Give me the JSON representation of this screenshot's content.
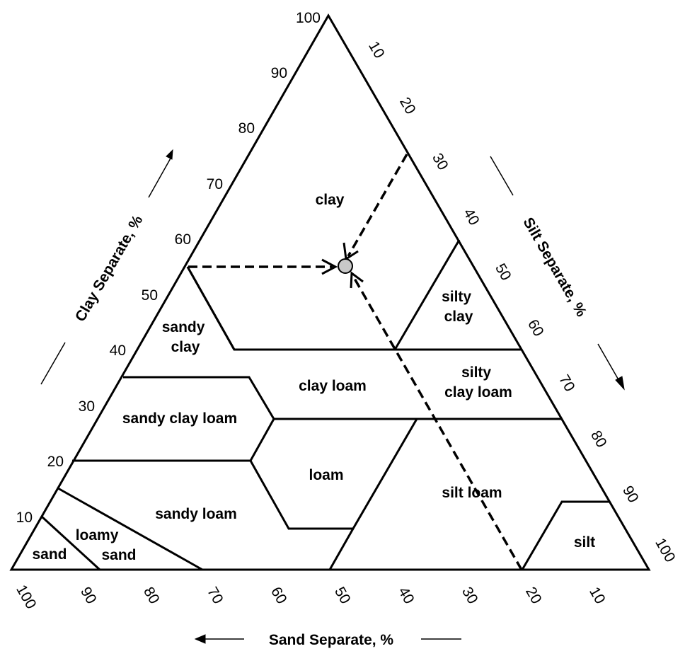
{
  "axes": {
    "clay": {
      "title": "Clay Separate, %",
      "ticks": [
        "10",
        "20",
        "30",
        "40",
        "50",
        "60",
        "70",
        "80",
        "90",
        "100"
      ]
    },
    "silt": {
      "title": "Silt Separate, %",
      "ticks": [
        "10",
        "20",
        "30",
        "40",
        "50",
        "60",
        "70",
        "80",
        "90",
        "100"
      ]
    },
    "sand": {
      "title": "Sand Separate, %",
      "ticks": [
        "100",
        "90",
        "80",
        "70",
        "60",
        "50",
        "40",
        "30",
        "20",
        "10"
      ]
    }
  },
  "textural_classes": [
    {
      "id": "clay",
      "lines": [
        "clay"
      ]
    },
    {
      "id": "silty-clay",
      "lines": [
        "silty",
        "clay"
      ]
    },
    {
      "id": "sandy-clay",
      "lines": [
        "sandy",
        "clay"
      ]
    },
    {
      "id": "clay-loam",
      "lines": [
        "clay loam"
      ]
    },
    {
      "id": "silty-clay-loam",
      "lines": [
        "silty",
        "clay loam"
      ]
    },
    {
      "id": "sandy-clay-loam",
      "lines": [
        "sandy clay loam"
      ]
    },
    {
      "id": "loam",
      "lines": [
        "loam"
      ]
    },
    {
      "id": "silt-loam",
      "lines": [
        "silt loam"
      ]
    },
    {
      "id": "sandy-loam",
      "lines": [
        "sandy loam"
      ]
    },
    {
      "id": "loamy-sand",
      "lines": [
        "loamy",
        "sand"
      ]
    },
    {
      "id": "sand",
      "lines": [
        "sand"
      ]
    },
    {
      "id": "silt",
      "lines": [
        "silt"
      ]
    }
  ],
  "example_point": {
    "clay": 55,
    "silt": 25,
    "sand": 20,
    "marker_fill": "#c8c8c8"
  },
  "colors": {
    "ink": "#000000",
    "background": "#ffffff"
  }
}
